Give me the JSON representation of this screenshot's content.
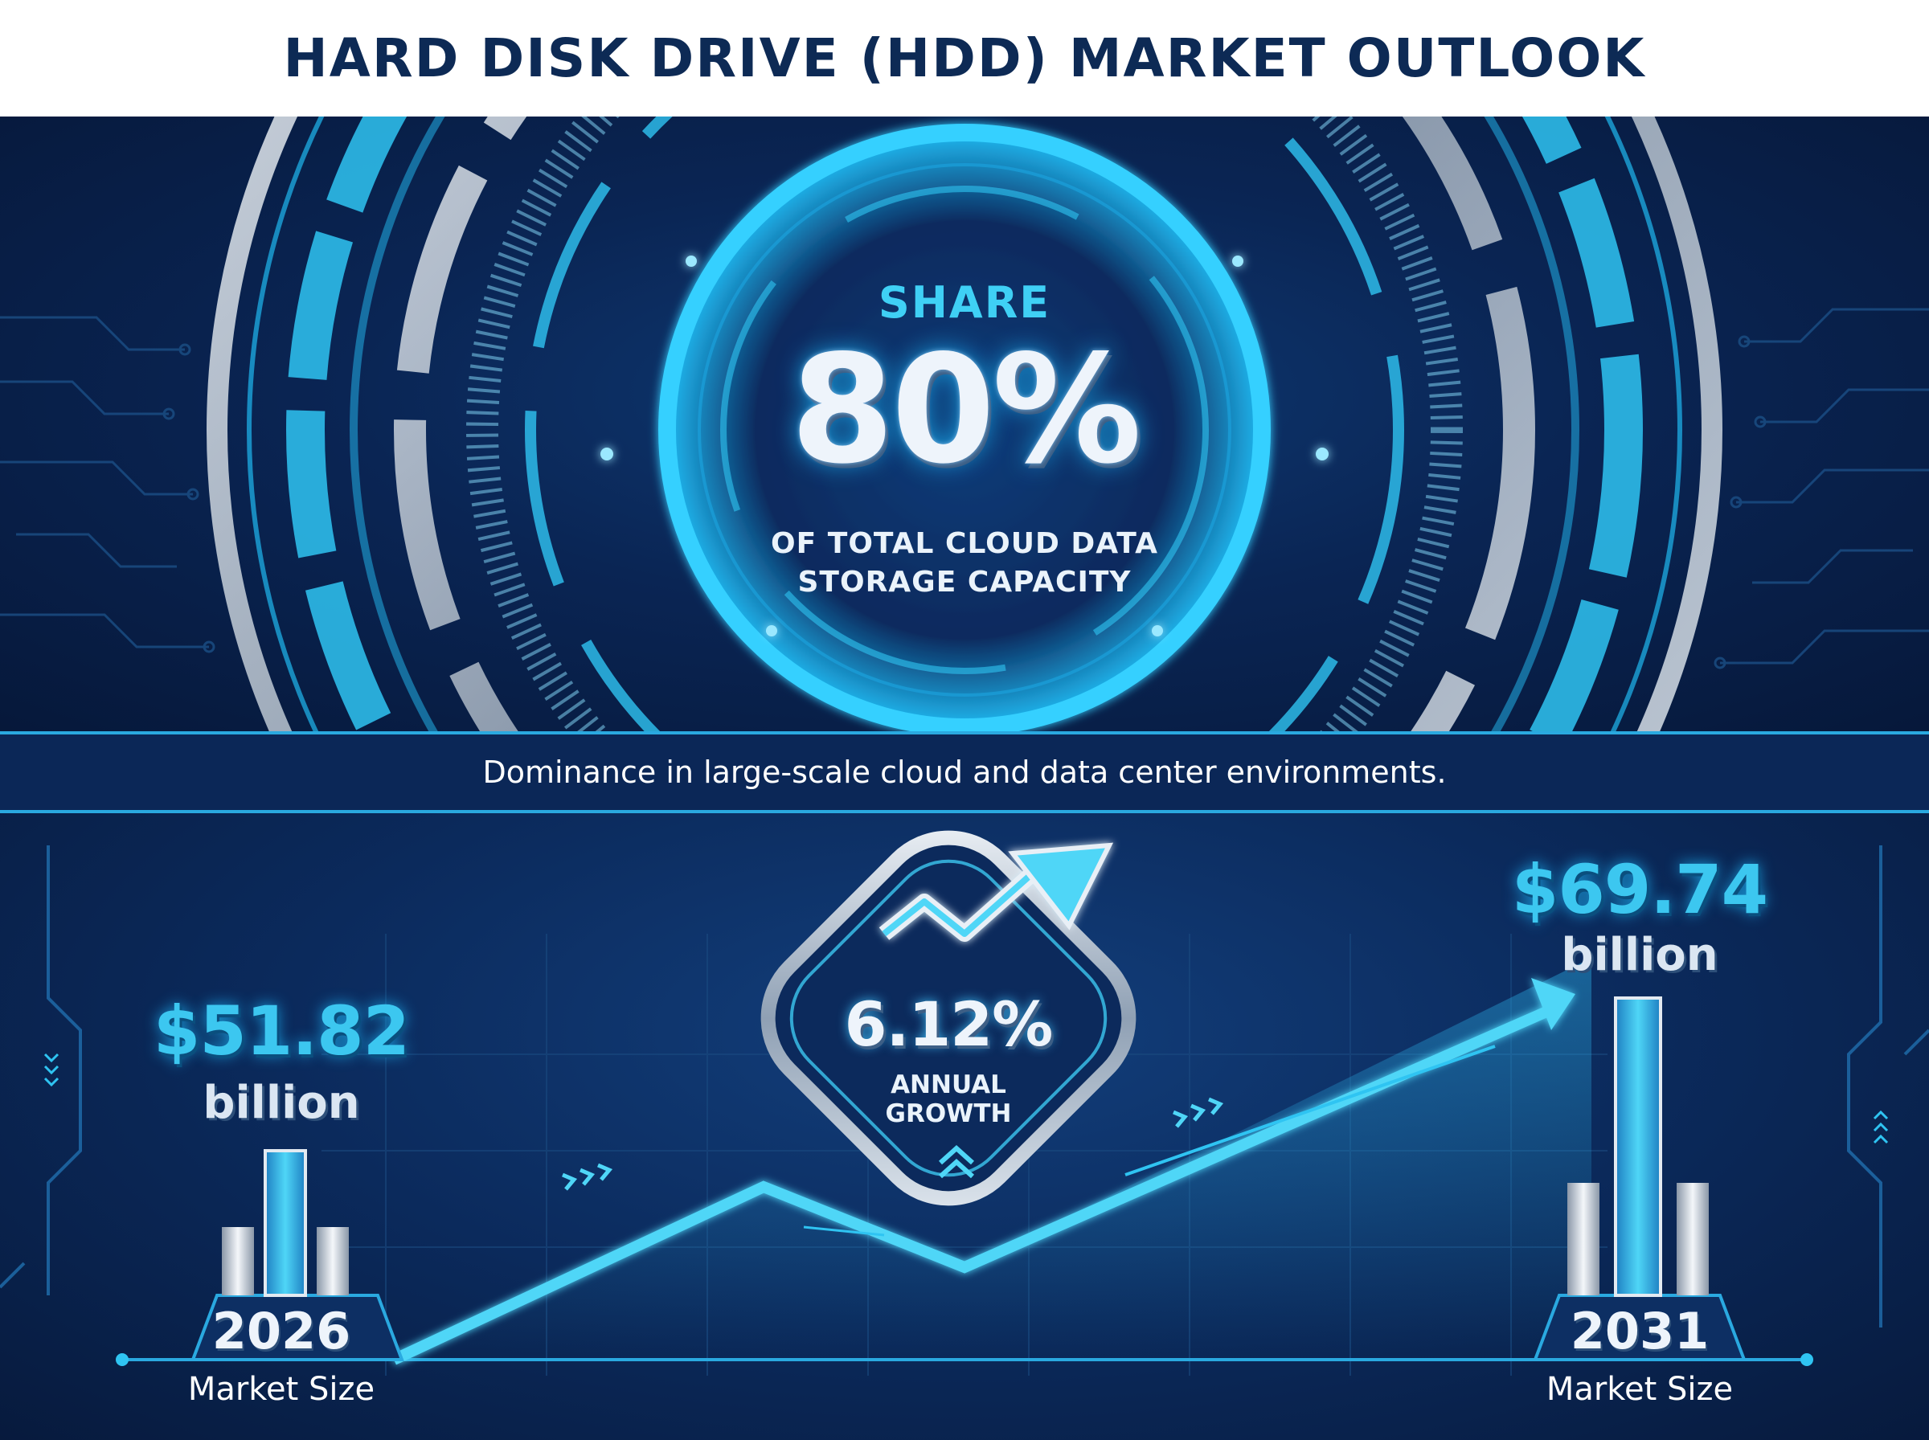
{
  "title": "HARD DISK DRIVE (HDD) MARKET OUTLOOK",
  "share": {
    "label": "SHARE",
    "value": "80%",
    "description_line1": "OF TOTAL CLOUD DATA",
    "description_line2": "STORAGE CAPACITY"
  },
  "tagline": "Dominance in large-scale cloud and data center environments.",
  "market": {
    "start": {
      "value": "$51.82",
      "unit": "billion",
      "year": "2026",
      "caption": "Market Size"
    },
    "end": {
      "value": "$69.74",
      "unit": "billion",
      "year": "2031",
      "caption": "Market Size"
    },
    "growth": {
      "value": "6.12%",
      "label_line1": "ANNUAL",
      "label_line2": "GROWTH"
    }
  },
  "colors": {
    "navy": "#0d2a55",
    "accent_cyan": "#3cc7f0",
    "panel_dark": "#0a2554",
    "silver": "#c9d3de"
  },
  "icons": [
    "circuit-lines",
    "trend-arrow-icon",
    "chevron-up-icon",
    "chevron-right-icons",
    "bar-pillar-icon"
  ]
}
